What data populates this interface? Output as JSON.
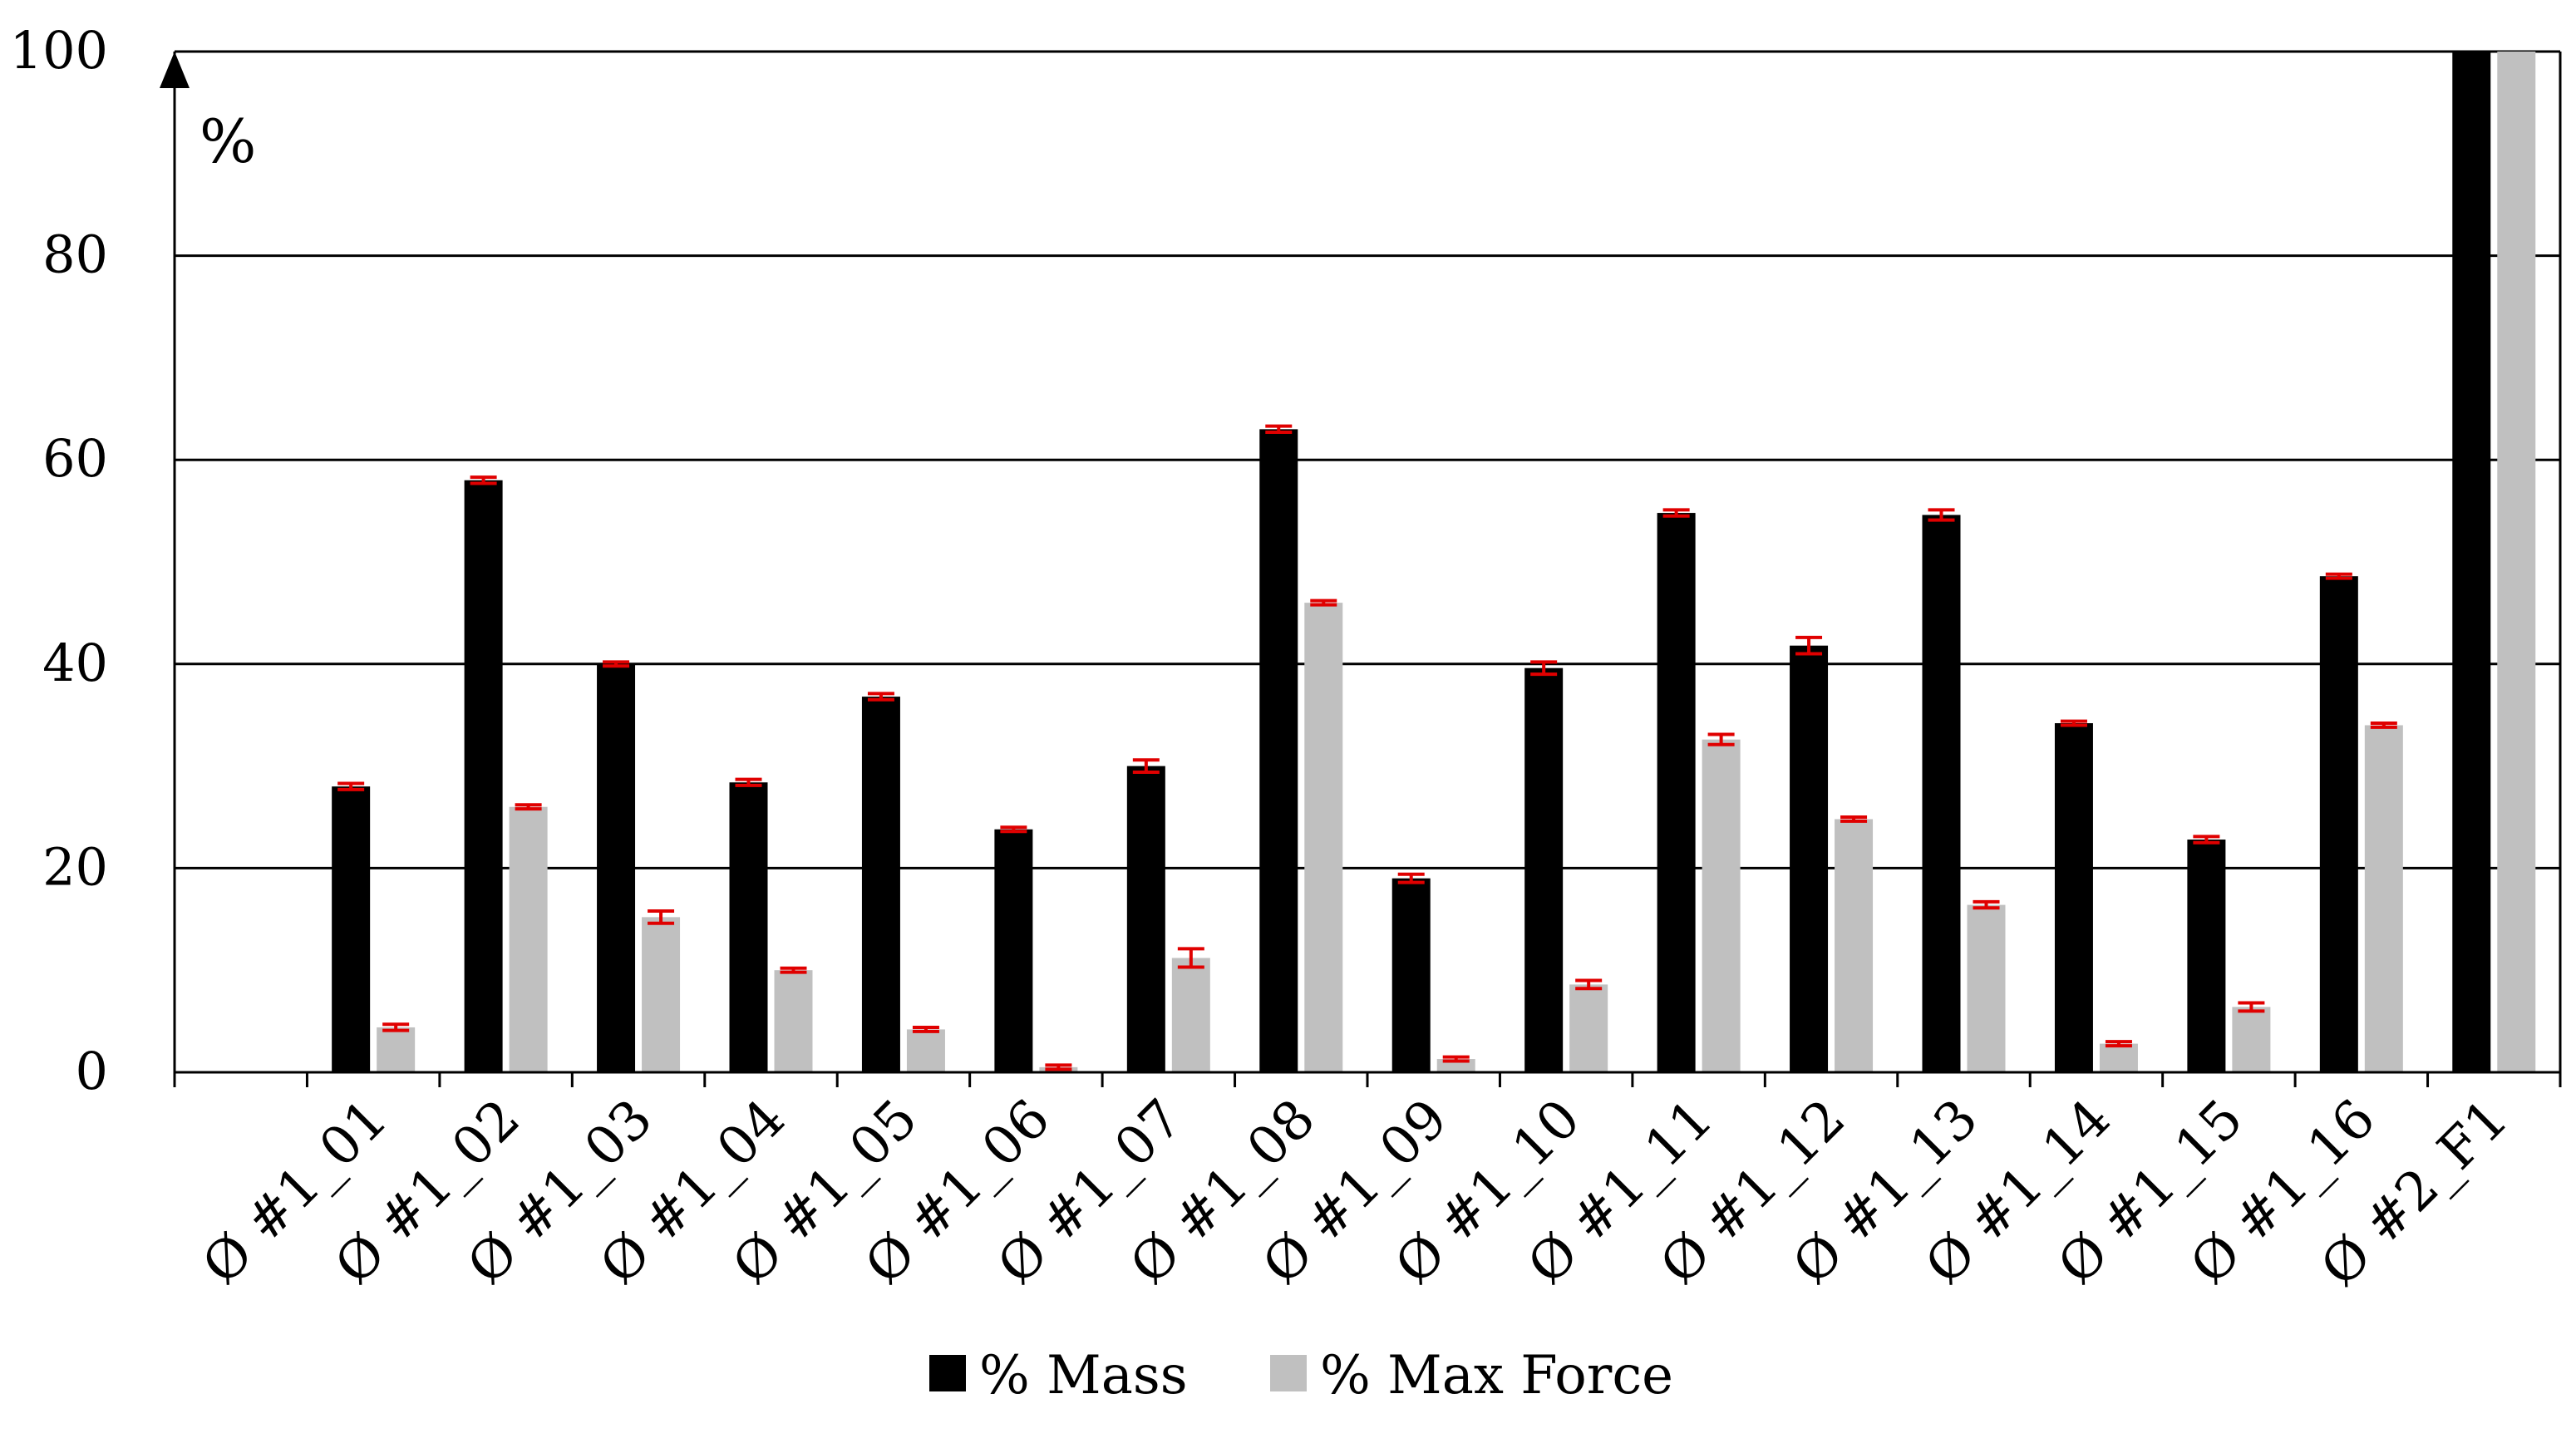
{
  "chart_data": {
    "type": "bar",
    "title": "",
    "xlabel": "",
    "ylabel": "%",
    "ylim": [
      0,
      100
    ],
    "yticks": [
      0,
      20,
      40,
      60,
      80,
      100
    ],
    "grid": true,
    "legend_position": "bottom-center",
    "categories": [
      "",
      "Ø #1_01",
      "Ø #1_02",
      "Ø #1_03",
      "Ø #1_04",
      "Ø #1_05",
      "Ø #1_06",
      "Ø #1_07",
      "Ø #1_08",
      "Ø #1_09",
      "Ø #1_10",
      "Ø #1_11",
      "Ø #1_12",
      "Ø #1_13",
      "Ø #1_14",
      "Ø #1_15",
      "Ø #1_16",
      "Ø #2_F1"
    ],
    "series": [
      {
        "name": "% Mass",
        "color": "#000000",
        "values": [
          null,
          28,
          58,
          40,
          28.4,
          36.8,
          23.8,
          30,
          63,
          19,
          39.6,
          54.8,
          41.8,
          54.6,
          34.2,
          22.8,
          48.6,
          100
        ],
        "errors": [
          null,
          0.3,
          0.3,
          0.2,
          0.3,
          0.3,
          0.2,
          0.6,
          0.3,
          0.4,
          0.6,
          0.3,
          0.8,
          0.5,
          0.2,
          0.3,
          0.2,
          0
        ]
      },
      {
        "name": "% Max Force",
        "color": "#c0c0c0",
        "values": [
          null,
          4.4,
          26,
          15.2,
          10,
          4.2,
          0.5,
          11.2,
          46,
          1.3,
          8.6,
          32.6,
          24.8,
          16.4,
          2.8,
          6.4,
          34,
          100
        ],
        "errors": [
          null,
          0.3,
          0.2,
          0.6,
          0.2,
          0.2,
          0.2,
          0.9,
          0.2,
          0.2,
          0.4,
          0.5,
          0.2,
          0.3,
          0.2,
          0.4,
          0.2,
          0
        ]
      }
    ],
    "error_bar_color": "#e00000"
  }
}
